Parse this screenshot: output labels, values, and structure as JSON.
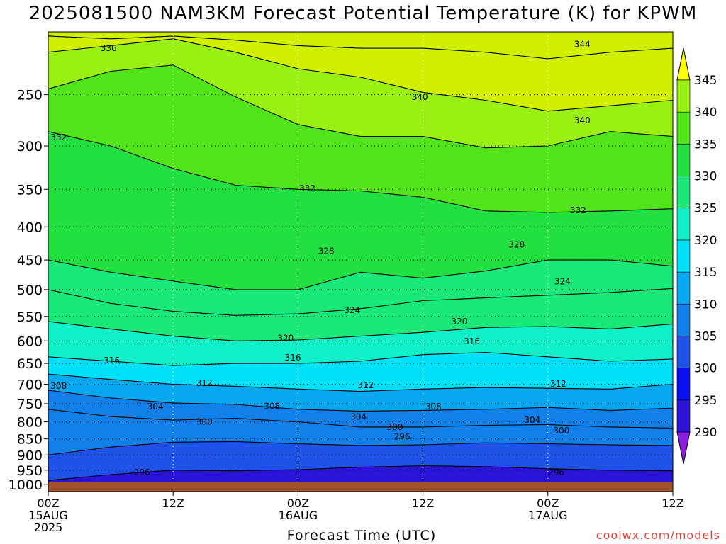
{
  "chart_data": {
    "type": "heatmap",
    "title": "2025081500 NAM3KM Forecast Potential Temperature (K) for KPWM",
    "xlabel": "Forecast Time (UTC)",
    "ylabel": "",
    "credit": "coolwx.com/models",
    "y_scale": "log",
    "ylim": [
      1025,
      200
    ],
    "xlim": [
      0,
      60
    ],
    "y_ticks": [
      "250",
      "300",
      "350",
      "400",
      "450",
      "500",
      "550",
      "600",
      "650",
      "700",
      "750",
      "800",
      "850",
      "900",
      "950",
      "1000"
    ],
    "y_tick_values": [
      250,
      300,
      350,
      400,
      450,
      500,
      550,
      600,
      650,
      700,
      750,
      800,
      850,
      900,
      950,
      1000
    ],
    "x_ticks": [
      {
        "hour": 0,
        "lines": [
          "00Z",
          "15AUG",
          "2025"
        ]
      },
      {
        "hour": 12,
        "lines": [
          "12Z"
        ]
      },
      {
        "hour": 24,
        "lines": [
          "00Z",
          "16AUG"
        ]
      },
      {
        "hour": 36,
        "lines": [
          "12Z"
        ]
      },
      {
        "hour": 48,
        "lines": [
          "00Z",
          "17AUG"
        ]
      },
      {
        "hour": 60,
        "lines": [
          "12Z"
        ]
      }
    ],
    "grid": true,
    "colorbar": {
      "levels": [
        290,
        295,
        300,
        305,
        310,
        315,
        320,
        325,
        330,
        335,
        340,
        345
      ],
      "tick_labels": [
        "290",
        "295",
        "300",
        "305",
        "310",
        "315",
        "320",
        "325",
        "330",
        "335",
        "340",
        "345"
      ],
      "colors": [
        "#8a1fe0",
        "#2b14d8",
        "#0a10ef",
        "#1f52e8",
        "#1280e8",
        "#08a8f0",
        "#00e0f8",
        "#10f0c8",
        "#1ae878",
        "#22e040",
        "#52e41a",
        "#9af012",
        "#d0f000",
        "#ffff00"
      ]
    },
    "contour_interval": 4,
    "contours": [
      {
        "value": 296,
        "x": [
          0,
          6,
          12,
          18,
          24,
          30,
          36,
          42,
          48,
          54,
          60
        ],
        "pressure": [
          985,
          965,
          950,
          952,
          948,
          940,
          935,
          938,
          945,
          950,
          952
        ]
      },
      {
        "value": 300,
        "x": [
          0,
          6,
          12,
          18,
          24,
          30,
          36,
          42,
          48,
          54,
          60
        ],
        "pressure": [
          900,
          875,
          860,
          858,
          865,
          870,
          868,
          862,
          865,
          868,
          870
        ]
      },
      {
        "value": 304,
        "x": [
          0,
          6,
          12,
          18,
          24,
          30,
          36,
          42,
          48,
          54,
          60
        ],
        "pressure": [
          765,
          785,
          795,
          790,
          800,
          815,
          815,
          810,
          808,
          815,
          818
        ]
      },
      {
        "value": 308,
        "x": [
          0,
          6,
          12,
          18,
          24,
          30,
          36,
          42,
          48,
          54,
          60
        ],
        "pressure": [
          715,
          735,
          748,
          752,
          765,
          770,
          768,
          765,
          760,
          768,
          762
        ]
      },
      {
        "value": 312,
        "x": [
          0,
          6,
          12,
          18,
          24,
          30,
          36,
          42,
          48,
          54,
          60
        ],
        "pressure": [
          675,
          688,
          700,
          705,
          712,
          718,
          712,
          708,
          710,
          712,
          700
        ]
      },
      {
        "value": 316,
        "x": [
          0,
          6,
          12,
          18,
          24,
          30,
          36,
          42,
          48,
          54,
          60
        ],
        "pressure": [
          635,
          645,
          655,
          650,
          650,
          645,
          630,
          625,
          635,
          645,
          640
        ]
      },
      {
        "value": 320,
        "x": [
          0,
          6,
          12,
          18,
          24,
          30,
          36,
          42,
          48,
          54,
          60
        ],
        "pressure": [
          560,
          575,
          590,
          600,
          598,
          590,
          582,
          572,
          570,
          575,
          565
        ]
      },
      {
        "value": 324,
        "x": [
          0,
          6,
          12,
          18,
          24,
          30,
          36,
          42,
          48,
          54,
          60
        ],
        "pressure": [
          500,
          525,
          540,
          548,
          545,
          535,
          520,
          515,
          510,
          505,
          498
        ]
      },
      {
        "value": 328,
        "x": [
          0,
          6,
          12,
          18,
          24,
          30,
          36,
          42,
          48,
          54,
          60
        ],
        "pressure": [
          450,
          470,
          485,
          500,
          500,
          470,
          480,
          468,
          450,
          450,
          460
        ]
      },
      {
        "value": 332,
        "x": [
          0,
          6,
          12,
          18,
          24,
          30,
          36,
          42,
          48,
          54,
          60
        ],
        "pressure": [
          285,
          300,
          325,
          345,
          350,
          352,
          360,
          378,
          380,
          378,
          375
        ]
      },
      {
        "value": 336,
        "x": [
          0,
          6,
          12,
          18,
          24,
          30,
          36,
          42,
          48,
          54,
          60
        ],
        "pressure": [
          245,
          230,
          225,
          252,
          278,
          290,
          290,
          302,
          300,
          285,
          290
        ]
      },
      {
        "value": 340,
        "x": [
          0,
          6,
          12,
          18,
          24,
          30,
          36,
          42,
          48,
          54,
          60
        ],
        "pressure": [
          215,
          210,
          205,
          215,
          228,
          235,
          248,
          255,
          265,
          260,
          255
        ]
      },
      {
        "value": 344,
        "x": [
          0,
          6,
          12,
          18,
          24,
          30,
          36,
          42,
          48,
          54,
          60
        ],
        "pressure": [
          203,
          205,
          203,
          206,
          210,
          212,
          212,
          215,
          220,
          215,
          212
        ]
      }
    ],
    "contour_labels": [
      {
        "text": "336",
        "x": 5.8,
        "p": 212
      },
      {
        "text": "344",
        "x": 51.3,
        "p": 209
      },
      {
        "text": "340",
        "x": 35.7,
        "p": 252
      },
      {
        "text": "340",
        "x": 51.3,
        "p": 274
      },
      {
        "text": "332",
        "x": 1.0,
        "p": 291
      },
      {
        "text": "332",
        "x": 24.9,
        "p": 349
      },
      {
        "text": "332",
        "x": 50.9,
        "p": 377
      },
      {
        "text": "328",
        "x": 26.7,
        "p": 436
      },
      {
        "text": "328",
        "x": 45.0,
        "p": 426
      },
      {
        "text": "324",
        "x": 49.4,
        "p": 486
      },
      {
        "text": "324",
        "x": 29.2,
        "p": 538
      },
      {
        "text": "320",
        "x": 39.5,
        "p": 560
      },
      {
        "text": "320",
        "x": 22.8,
        "p": 594
      },
      {
        "text": "316",
        "x": 40.7,
        "p": 601
      },
      {
        "text": "316",
        "x": 23.5,
        "p": 637
      },
      {
        "text": "316",
        "x": 6.1,
        "p": 643
      },
      {
        "text": "312",
        "x": 15.0,
        "p": 697
      },
      {
        "text": "312",
        "x": 30.5,
        "p": 703
      },
      {
        "text": "312",
        "x": 49.0,
        "p": 699
      },
      {
        "text": "308",
        "x": 1.0,
        "p": 704
      },
      {
        "text": "304",
        "x": 10.3,
        "p": 758
      },
      {
        "text": "308",
        "x": 21.5,
        "p": 757
      },
      {
        "text": "308",
        "x": 37.0,
        "p": 758
      },
      {
        "text": "304",
        "x": 29.8,
        "p": 786
      },
      {
        "text": "304",
        "x": 46.5,
        "p": 795
      },
      {
        "text": "300",
        "x": 15.0,
        "p": 800
      },
      {
        "text": "300",
        "x": 33.3,
        "p": 815
      },
      {
        "text": "300",
        "x": 49.3,
        "p": 825
      },
      {
        "text": "296",
        "x": 34.0,
        "p": 843
      },
      {
        "text": "296",
        "x": 9.0,
        "p": 958
      },
      {
        "text": "296",
        "x": 48.8,
        "p": 958
      }
    ]
  }
}
